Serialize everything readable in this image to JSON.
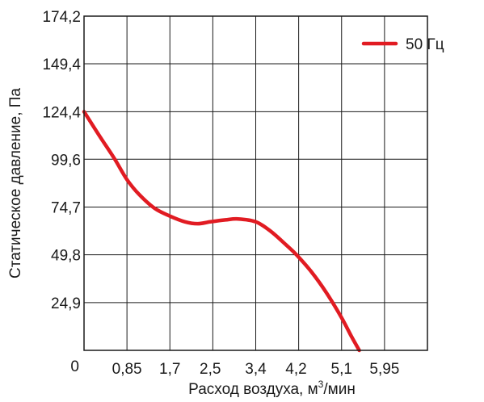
{
  "chart_data": {
    "type": "line",
    "xlabel_prefix": "Расход воздуха, м",
    "xlabel_sup": "3",
    "xlabel_suffix": "/мин",
    "ylabel": "Статическое давление, Па",
    "x_ticks": [
      "0,85",
      "1,7",
      "2,5",
      "3,4",
      "4,2",
      "5,1",
      "5,95"
    ],
    "y_ticks": [
      "0",
      "24,9",
      "49,8",
      "74,7",
      "99,6",
      "124,4",
      "149,4",
      "174,2"
    ],
    "xlim": [
      0,
      6.8
    ],
    "ylim": [
      0,
      174.2
    ],
    "grid": true,
    "legend_position": "top-right",
    "series": [
      {
        "name": "50 Гц",
        "color": "#e11b22",
        "points": [
          [
            0.0,
            124.4
          ],
          [
            0.3,
            112
          ],
          [
            0.6,
            100
          ],
          [
            0.85,
            89
          ],
          [
            1.1,
            81
          ],
          [
            1.4,
            74
          ],
          [
            1.7,
            70
          ],
          [
            2.0,
            67
          ],
          [
            2.25,
            66
          ],
          [
            2.5,
            67
          ],
          [
            2.8,
            68
          ],
          [
            3.05,
            68.5
          ],
          [
            3.4,
            67
          ],
          [
            3.7,
            62
          ],
          [
            4.0,
            55
          ],
          [
            4.2,
            50
          ],
          [
            4.5,
            41
          ],
          [
            4.8,
            30
          ],
          [
            5.1,
            17
          ],
          [
            5.3,
            7
          ],
          [
            5.45,
            0
          ]
        ]
      }
    ]
  }
}
